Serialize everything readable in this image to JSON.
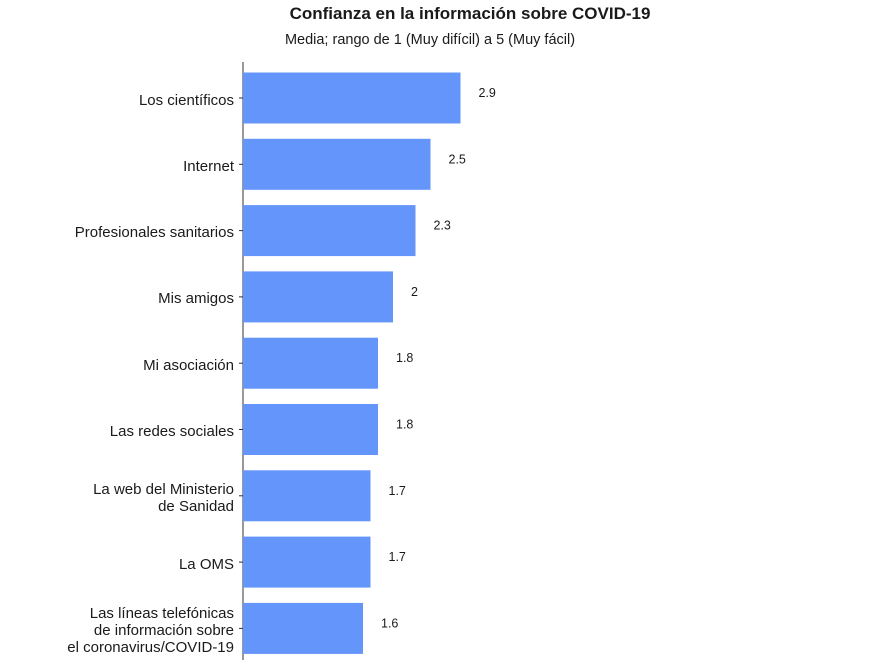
{
  "chart_data": {
    "type": "bar",
    "orientation": "horizontal",
    "title": "Confianza en la información sobre COVID-19",
    "subtitle": "Media; rango de 1 (Muy difícil) a 5 (Muy fácil)",
    "xlabel": "",
    "ylabel": "",
    "categories": [
      "Los científicos",
      "Internet",
      "Profesionales sanitarios",
      "Mis amigos",
      "Mi asociación",
      "Las redes sociales",
      "La web del Ministerio\nde Sanidad",
      "La OMS",
      "Las líneas telefónicas\nde información sobre\nel coronavirus/COVID-19"
    ],
    "values": [
      2.9,
      2.5,
      2.3,
      2,
      1.8,
      1.8,
      1.7,
      1.7,
      1.6
    ],
    "value_labels": [
      "2.9",
      "2.5",
      "2.3",
      "2",
      "1.8",
      "1.8",
      "1.7",
      "1.7",
      "1.6"
    ],
    "xlim": [
      0,
      5
    ],
    "grid": false,
    "legend": "none",
    "bar_color": "#6495fa"
  }
}
